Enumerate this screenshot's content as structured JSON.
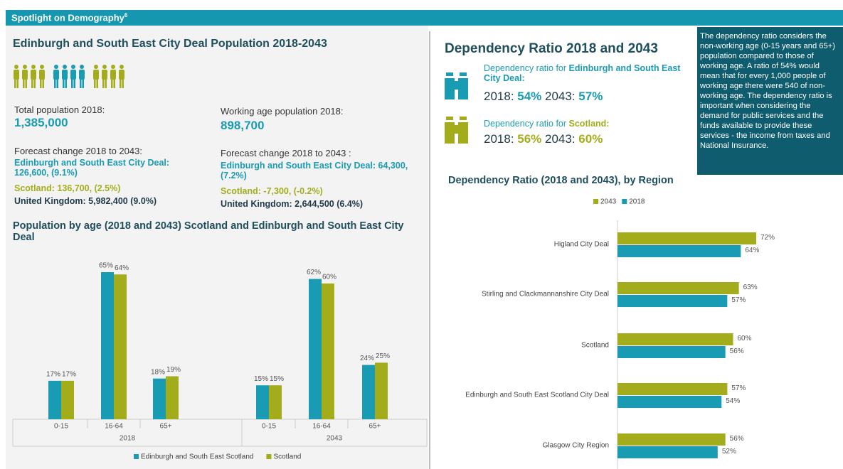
{
  "banner": {
    "title": "Spotlight on Demography",
    "note_ref": "6"
  },
  "population": {
    "title": "Edinburgh and South East City Deal Population 2018-2043",
    "total": {
      "label": "Total population 2018:",
      "value": "1,385,000"
    },
    "working": {
      "label": "Working age population 2018:",
      "value": "898,700"
    },
    "total_change": {
      "label": "Forecast change 2018 to 2043:",
      "lines": [
        "Edinburgh and South East City Deal: 126,600, (9.1%)",
        "Scotland: 136,700, (2.5%)",
        "United Kingdom: 5,982,400 (9.0%)"
      ]
    },
    "working_change": {
      "label": "Forecast change 2018 to 2043 :",
      "lines": [
        "Edinburgh and South East City Deal: 64,300, (7.2%)",
        "Scotland: -7,300, (-0.2%)",
        "United Kingdom: 2,644,500 (6.4%)"
      ]
    }
  },
  "dependency": {
    "title": "Dependency Ratio 2018 and 2043",
    "items": [
      {
        "prefix": "Dependency ratio for ",
        "area": "Edinburgh and South East City Deal:",
        "y1": "2018: ",
        "v1": "54%",
        "y2": " 2043: ",
        "v2": "57%"
      },
      {
        "prefix": "Dependency ratio for ",
        "area": "Scotland:",
        "y1": "2018: ",
        "v1": "56%",
        "y2": " 2043: ",
        "v2": "60%"
      }
    ]
  },
  "note": "The dependency ratio considers the non-working age (0-15 years and 65+) population compared to those of working age. A ratio of 54% would mean that for every 1,000 people of working age there were 540 of non-working age. The dependency ratio is important when considering the demand for public services and the funds available to provide these services - the income from taxes and National Insurance.",
  "chart_data": [
    {
      "type": "bar",
      "title": "Population by age (2018 and 2043) Scotland and Edinburgh and South East City Deal",
      "groups": [
        "2018",
        "2043"
      ],
      "categories": [
        "0-15",
        "16-64",
        "65+",
        "0-15",
        "16-64",
        "65+"
      ],
      "series": [
        {
          "name": "Edinburgh and South East Scotland",
          "color": "#1a9bb4",
          "values": [
            17,
            65,
            18,
            15,
            62,
            24
          ],
          "value_labels": [
            "17%",
            "65%",
            "18%",
            "15%",
            "62%",
            "24%"
          ]
        },
        {
          "name": "Scotland",
          "color": "#a3ad1c",
          "values": [
            17,
            64,
            19,
            15,
            60,
            25
          ],
          "value_labels": [
            "17%",
            "64%",
            "19%",
            "15%",
            "60%",
            "25%"
          ]
        }
      ]
    },
    {
      "type": "barh",
      "title": "Dependency Ratio (2018 and 2043), by Region",
      "categories": [
        "Higland City Deal",
        "Stirling and Clackmannanshire City Deal",
        "Scotland",
        "Edinburgh and South East Scotland City Deal",
        "Glasgow City Region"
      ],
      "series": [
        {
          "name": "2043",
          "color": "#a3ad1c",
          "values": [
            72,
            63,
            60,
            57,
            56
          ],
          "value_labels": [
            "72%",
            "63%",
            "60%",
            "57%",
            "56%"
          ]
        },
        {
          "name": "2018",
          "color": "#1a9bb4",
          "values": [
            64,
            57,
            56,
            54,
            52
          ],
          "value_labels": [
            "64%",
            "57%",
            "56%",
            "54%",
            "52%"
          ]
        }
      ]
    }
  ]
}
